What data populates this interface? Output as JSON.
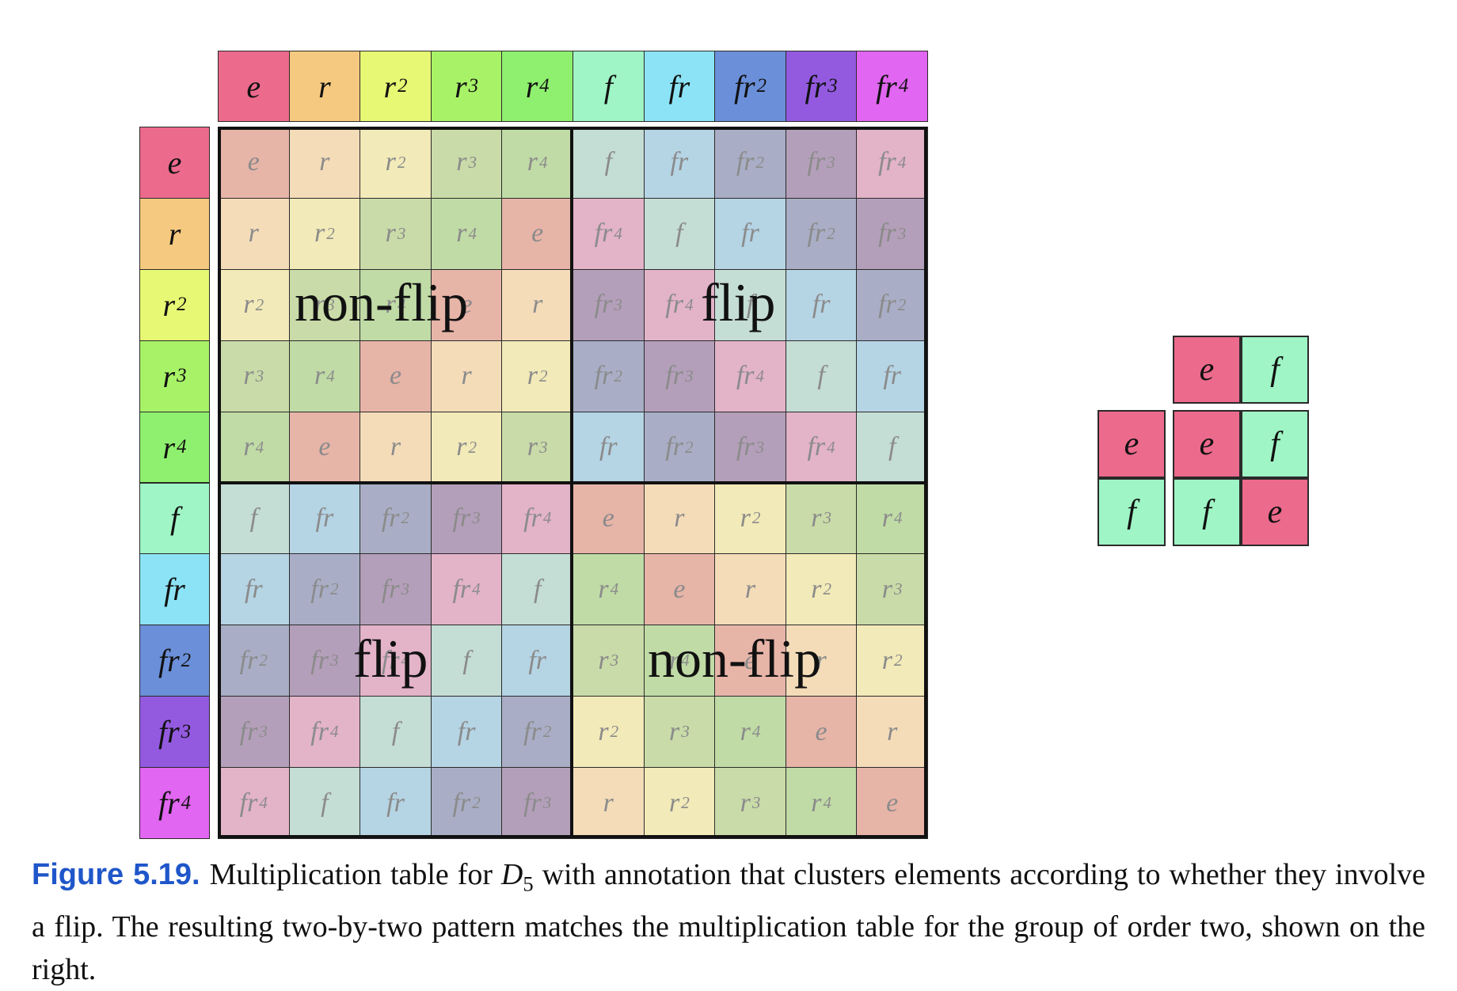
{
  "elements": [
    {
      "base": "e",
      "exp": ""
    },
    {
      "base": "r",
      "exp": ""
    },
    {
      "base": "r",
      "exp": "2"
    },
    {
      "base": "r",
      "exp": "3"
    },
    {
      "base": "r",
      "exp": "4"
    },
    {
      "base": "f",
      "exp": ""
    },
    {
      "base": "fr",
      "exp": ""
    },
    {
      "base": "fr",
      "exp": "2"
    },
    {
      "base": "fr",
      "exp": "3"
    },
    {
      "base": "fr",
      "exp": "4"
    }
  ],
  "header_colors": [
    "#ec6a8c",
    "#f5c97f",
    "#e7f874",
    "#a8f267",
    "#8ff06f",
    "#9ff5c5",
    "#8ce3f5",
    "#6b8fd8",
    "#935ae0",
    "#e166f1"
  ],
  "table": [
    [
      0,
      1,
      2,
      3,
      4,
      5,
      6,
      7,
      8,
      9
    ],
    [
      1,
      2,
      3,
      4,
      0,
      9,
      5,
      6,
      7,
      8
    ],
    [
      2,
      3,
      4,
      0,
      1,
      8,
      9,
      5,
      6,
      7
    ],
    [
      3,
      4,
      0,
      1,
      2,
      7,
      8,
      9,
      5,
      6
    ],
    [
      4,
      0,
      1,
      2,
      3,
      6,
      7,
      8,
      9,
      5
    ],
    [
      5,
      6,
      7,
      8,
      9,
      0,
      1,
      2,
      3,
      4
    ],
    [
      6,
      7,
      8,
      9,
      5,
      4,
      0,
      1,
      2,
      3
    ],
    [
      7,
      8,
      9,
      5,
      6,
      3,
      4,
      0,
      1,
      2
    ],
    [
      8,
      9,
      5,
      6,
      7,
      2,
      3,
      4,
      0,
      1
    ],
    [
      9,
      5,
      6,
      7,
      8,
      1,
      2,
      3,
      4,
      0
    ]
  ],
  "body_colors": [
    "#e7b4a8",
    "#f4dcb9",
    "#f2eab8",
    "#c9dba8",
    "#c0dba6",
    "#c4ddd5",
    "#b5d4e4",
    "#a9aec6",
    "#b49fba",
    "#e3b3c8"
  ],
  "quadrant_labels": {
    "top_left": "non-flip",
    "top_right": "flip",
    "bottom_left": "flip",
    "bottom_right": "non-flip"
  },
  "z2": {
    "header_row": [
      "e",
      "f"
    ],
    "header_col": [
      "e",
      "f"
    ],
    "body": [
      [
        "e",
        "f"
      ],
      [
        "f",
        "e"
      ]
    ],
    "colors": {
      "e": "#ec6a8c",
      "f": "#9ff5c5"
    }
  },
  "caption": {
    "figure_label": "Figure 5.19.",
    "text_1": "Multiplication table for ",
    "group_base": "D",
    "group_sub": "5",
    "text_2": " with annotation that clusters elements according to whether they involve a flip. The resulting two-by-two pattern matches the multiplication table for the group of order two, shown on the right."
  }
}
